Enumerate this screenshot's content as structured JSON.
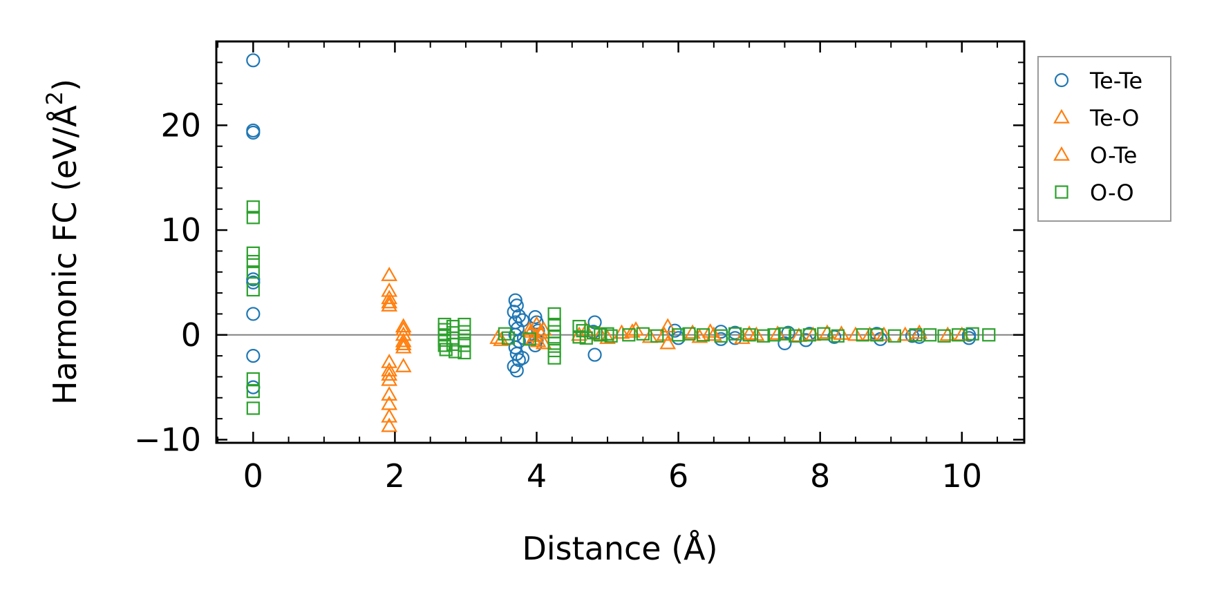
{
  "chart_data": {
    "type": "scatter",
    "title": "",
    "xlabel": "Distance (Å)",
    "ylabel_main": "Harmonic FC (eV/Å",
    "ylabel_sup": "2",
    "ylabel_close": ")",
    "xlim": [
      -0.52,
      10.88
    ],
    "ylim": [
      -10.3,
      28
    ],
    "xticks": [
      0,
      2,
      4,
      6,
      8,
      10
    ],
    "xtick_labels": [
      "0",
      "2",
      "4",
      "6",
      "8",
      "10"
    ],
    "yticks": [
      -10,
      0,
      10,
      20
    ],
    "ytick_labels": [
      "−10",
      "0",
      "10",
      "20"
    ],
    "zero_line": true,
    "legend_position": "outside-right-top",
    "series": [
      {
        "name": "Te-Te",
        "marker": "circle",
        "color": "#1f77b4",
        "points": [
          [
            0,
            26.2
          ],
          [
            0,
            19.5
          ],
          [
            0,
            19.3
          ],
          [
            0,
            5.3
          ],
          [
            0,
            5.0
          ],
          [
            0,
            2.0
          ],
          [
            0,
            -2.0
          ],
          [
            0,
            -5.0
          ],
          [
            3.7,
            3.3
          ],
          [
            3.72,
            2.8
          ],
          [
            3.68,
            2.2
          ],
          [
            3.75,
            1.8
          ],
          [
            3.7,
            1.2
          ],
          [
            3.73,
            0.6
          ],
          [
            3.7,
            0.0
          ],
          [
            3.75,
            -0.6
          ],
          [
            3.7,
            -1.2
          ],
          [
            3.72,
            -1.8
          ],
          [
            3.75,
            -2.4
          ],
          [
            3.68,
            -3.0
          ],
          [
            3.72,
            -3.4
          ],
          [
            3.8,
            1.4
          ],
          [
            3.82,
            -0.3
          ],
          [
            3.8,
            -2.2
          ],
          [
            3.98,
            1.7
          ],
          [
            4.0,
            1.2
          ],
          [
            4.02,
            0.4
          ],
          [
            4.0,
            -0.5
          ],
          [
            3.98,
            -1.0
          ],
          [
            4.82,
            1.2
          ],
          [
            4.82,
            -1.9
          ],
          [
            4.8,
            0.3
          ],
          [
            5.95,
            0.4
          ],
          [
            6.0,
            -0.3
          ],
          [
            6.6,
            0.3
          ],
          [
            6.6,
            -0.4
          ],
          [
            6.8,
            0.2
          ],
          [
            6.8,
            -0.3
          ],
          [
            7.5,
            -0.8
          ],
          [
            7.55,
            0.2
          ],
          [
            7.8,
            -0.5
          ],
          [
            7.85,
            0.1
          ],
          [
            8.2,
            -0.2
          ],
          [
            8.8,
            0.1
          ],
          [
            8.85,
            -0.4
          ],
          [
            9.3,
            -0.1
          ],
          [
            9.4,
            -0.2
          ],
          [
            10.1,
            0.0
          ],
          [
            10.1,
            -0.3
          ]
        ]
      },
      {
        "name": "Te-O",
        "marker": "triangle",
        "color": "#ff7f0e",
        "points": [
          [
            1.92,
            5.7
          ],
          [
            1.92,
            3.5
          ],
          [
            1.92,
            2.8
          ],
          [
            1.92,
            -2.6
          ],
          [
            1.92,
            -3.8
          ],
          [
            1.92,
            -5.7
          ],
          [
            1.92,
            -7.8
          ],
          [
            1.92,
            -8.7
          ],
          [
            2.12,
            0.8
          ],
          [
            2.12,
            0.0
          ],
          [
            2.12,
            -1.2
          ],
          [
            2.12,
            -3.0
          ],
          [
            3.45,
            -0.3
          ],
          [
            3.9,
            0.5
          ],
          [
            3.95,
            -0.4
          ],
          [
            4.0,
            1.0
          ],
          [
            4.02,
            -0.6
          ],
          [
            4.05,
            0.2
          ],
          [
            4.6,
            0.0
          ],
          [
            4.9,
            0.0
          ],
          [
            5.2,
            0.2
          ],
          [
            5.4,
            0.5
          ],
          [
            5.6,
            -0.2
          ],
          [
            5.85,
            0.8
          ],
          [
            5.85,
            -0.8
          ],
          [
            6.2,
            0.2
          ],
          [
            6.45,
            0.3
          ],
          [
            6.9,
            -0.3
          ],
          [
            7.1,
            0.0
          ],
          [
            7.4,
            0.1
          ],
          [
            7.9,
            0.0
          ],
          [
            8.1,
            0.2
          ],
          [
            8.5,
            0.0
          ],
          [
            8.9,
            0.0
          ],
          [
            9.4,
            0.2
          ],
          [
            9.8,
            0.0
          ]
        ]
      },
      {
        "name": "O-Te",
        "marker": "triangle",
        "color": "#ff7f0e",
        "points": [
          [
            1.92,
            4.2
          ],
          [
            1.92,
            3.1
          ],
          [
            1.92,
            -3.4
          ],
          [
            1.92,
            -4.3
          ],
          [
            1.92,
            -6.6
          ],
          [
            2.12,
            0.5
          ],
          [
            2.12,
            -0.6
          ],
          [
            2.12,
            -0.9
          ],
          [
            3.5,
            -0.5
          ],
          [
            3.92,
            0.3
          ],
          [
            3.98,
            -0.1
          ],
          [
            4.1,
            0.5
          ],
          [
            4.1,
            -0.8
          ],
          [
            4.7,
            0.4
          ],
          [
            5.0,
            -0.3
          ],
          [
            5.35,
            0.3
          ],
          [
            5.8,
            0.0
          ],
          [
            6.3,
            -0.2
          ],
          [
            6.5,
            0.0
          ],
          [
            7.0,
            0.1
          ],
          [
            7.7,
            -0.1
          ],
          [
            8.3,
            0.1
          ],
          [
            8.7,
            0.0
          ],
          [
            9.2,
            0.0
          ],
          [
            10.0,
            0.0
          ]
        ]
      },
      {
        "name": "O-O",
        "marker": "square",
        "color": "#2ca02c",
        "points": [
          [
            0,
            12.2
          ],
          [
            0,
            11.2
          ],
          [
            0,
            7.8
          ],
          [
            0,
            7.0
          ],
          [
            0,
            6.0
          ],
          [
            0,
            4.3
          ],
          [
            0,
            -4.2
          ],
          [
            0,
            -5.4
          ],
          [
            0,
            -7.0
          ],
          [
            2.7,
            1.0
          ],
          [
            2.7,
            0.5
          ],
          [
            2.7,
            0.0
          ],
          [
            2.7,
            -0.5
          ],
          [
            2.7,
            -1.0
          ],
          [
            2.72,
            -1.4
          ],
          [
            2.82,
            0.8
          ],
          [
            2.82,
            0.2
          ],
          [
            2.82,
            -0.3
          ],
          [
            2.82,
            -0.9
          ],
          [
            2.85,
            -1.6
          ],
          [
            2.98,
            1.0
          ],
          [
            2.98,
            0.3
          ],
          [
            2.98,
            -0.5
          ],
          [
            2.98,
            -1.0
          ],
          [
            2.98,
            -1.7
          ],
          [
            3.55,
            0.1
          ],
          [
            3.6,
            -0.3
          ],
          [
            3.9,
            -0.4
          ],
          [
            4.25,
            2.0
          ],
          [
            4.25,
            1.0
          ],
          [
            4.25,
            0.3
          ],
          [
            4.25,
            -0.2
          ],
          [
            4.25,
            -0.8
          ],
          [
            4.25,
            -1.5
          ],
          [
            4.25,
            -2.2
          ],
          [
            4.6,
            0.8
          ],
          [
            4.6,
            -0.2
          ],
          [
            4.65,
            0.4
          ],
          [
            4.7,
            -0.3
          ],
          [
            4.8,
            0.2
          ],
          [
            4.9,
            0.0
          ],
          [
            5.0,
            0.1
          ],
          [
            5.05,
            -0.1
          ],
          [
            5.3,
            0.0
          ],
          [
            5.5,
            0.1
          ],
          [
            5.7,
            -0.1
          ],
          [
            6.0,
            0.0
          ],
          [
            6.15,
            0.1
          ],
          [
            6.35,
            0.0
          ],
          [
            6.6,
            -0.1
          ],
          [
            6.8,
            0.1
          ],
          [
            7.0,
            0.0
          ],
          [
            7.2,
            -0.1
          ],
          [
            7.35,
            0.0
          ],
          [
            7.5,
            0.1
          ],
          [
            7.65,
            -0.1
          ],
          [
            7.85,
            0.0
          ],
          [
            8.05,
            0.1
          ],
          [
            8.25,
            -0.1
          ],
          [
            8.6,
            0.0
          ],
          [
            8.8,
            0.0
          ],
          [
            9.05,
            -0.1
          ],
          [
            9.35,
            0.0
          ],
          [
            9.55,
            0.0
          ],
          [
            9.75,
            -0.1
          ],
          [
            9.95,
            0.0
          ],
          [
            10.15,
            0.1
          ],
          [
            10.38,
            0.0
          ]
        ]
      }
    ]
  }
}
